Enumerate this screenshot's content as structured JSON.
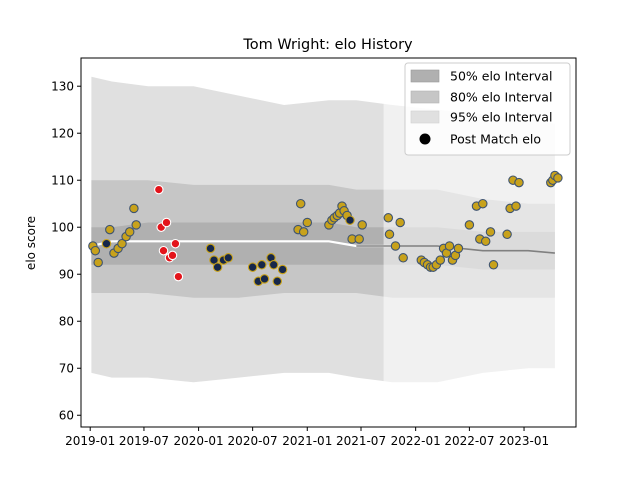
{
  "chart_data": {
    "type": "scatter",
    "title": "Tom Wright: elo History",
    "xlabel": "",
    "ylabel": "elo score",
    "x_axis_type": "date",
    "xlim": [
      "2018-12-01",
      "2023-06-25"
    ],
    "ylim": [
      57.5,
      136
    ],
    "x_ticks": [
      "2019-01",
      "2019-07",
      "2020-01",
      "2020-07",
      "2021-01",
      "2021-07",
      "2022-01",
      "2022-07",
      "2023-01"
    ],
    "y_ticks": [
      60,
      70,
      80,
      90,
      100,
      110,
      120,
      130
    ],
    "grid": false,
    "legend_position": "top-right",
    "legend": [
      {
        "label": "50% elo Interval",
        "swatch": "#b0b0b0"
      },
      {
        "label": "80% elo Interval",
        "swatch": "#c6c6c6"
      },
      {
        "label": "95% elo Interval",
        "swatch": "#e0e0e0"
      },
      {
        "label": "Post Match elo",
        "swatch": "marker"
      }
    ],
    "colors": {
      "band_95": "#e0e0e0",
      "band_80": "#c6c6c6",
      "band_50": "#b0b0b0",
      "mean_line": "#ffffff",
      "mean_line_later": "#808080",
      "marker_red": "#e3141b",
      "marker_gold": "#c8a21b",
      "marker_navy": "#16274a",
      "marker_edge_light": "#ffffff",
      "marker_edge_dark": "#3f5470"
    },
    "bands": [
      {
        "date": "2019-01-05",
        "lo95": 69,
        "lo80": 86,
        "lo50": 92,
        "mean": 96,
        "hi50": 100,
        "hi80": 110,
        "hi95": 132
      },
      {
        "date": "2019-03-15",
        "lo95": 68,
        "lo80": 86,
        "lo50": 92,
        "mean": 97,
        "hi50": 100,
        "hi80": 110,
        "hi95": 131
      },
      {
        "date": "2019-07-15",
        "lo95": 68,
        "lo80": 86,
        "lo50": 92,
        "mean": 97,
        "hi50": 101,
        "hi80": 110,
        "hi95": 130
      },
      {
        "date": "2019-12-15",
        "lo95": 67,
        "lo80": 85,
        "lo50": 92,
        "mean": 97,
        "hi50": 101,
        "hi80": 109,
        "hi95": 130
      },
      {
        "date": "2020-05-15",
        "lo95": 68,
        "lo80": 85,
        "lo50": 92,
        "mean": 97,
        "hi50": 101,
        "hi80": 109,
        "hi95": 128
      },
      {
        "date": "2020-10-15",
        "lo95": 69,
        "lo80": 86,
        "lo50": 92,
        "mean": 97,
        "hi50": 101,
        "hi80": 109,
        "hi95": 126
      },
      {
        "date": "2021-03-15",
        "lo95": 69,
        "lo80": 86,
        "lo50": 92,
        "mean": 97,
        "hi50": 101,
        "hi80": 109,
        "hi95": 127
      },
      {
        "date": "2021-06-15",
        "lo95": 68,
        "lo80": 86,
        "lo50": 92,
        "mean": 96,
        "hi50": 100,
        "hi80": 108,
        "hi95": 127
      },
      {
        "date": "2021-10-15",
        "lo95": 67,
        "lo80": 85,
        "lo50": 92,
        "mean": 96,
        "hi50": 100,
        "hi80": 108,
        "hi95": 126
      },
      {
        "date": "2022-03-15",
        "lo95": 67,
        "lo80": 85,
        "lo50": 92,
        "mean": 96,
        "hi50": 100,
        "hi80": 108,
        "hi95": 125
      },
      {
        "date": "2022-08-15",
        "lo95": 69,
        "lo80": 85,
        "lo50": 91,
        "mean": 95,
        "hi50": 99,
        "hi80": 106,
        "hi95": 124
      },
      {
        "date": "2023-01-15",
        "lo95": 70,
        "lo80": 85,
        "lo50": 91,
        "mean": 95,
        "hi50": 99,
        "hi80": 105,
        "hi95": 123
      },
      {
        "date": "2023-04-15",
        "lo95": 70,
        "lo80": 85,
        "lo50": 91,
        "mean": 94.5,
        "hi50": 99,
        "hi80": 105,
        "hi95": 122
      }
    ],
    "mean_line_split_date": "2021-09-15",
    "shaded_region_end_date": "2021-09-15",
    "points": [
      {
        "date": "2019-01-10",
        "y": 96,
        "c": "gold"
      },
      {
        "date": "2019-01-18",
        "y": 95,
        "c": "gold"
      },
      {
        "date": "2019-01-28",
        "y": 92.5,
        "c": "gold"
      },
      {
        "date": "2019-03-08",
        "y": 99.5,
        "c": "gold"
      },
      {
        "date": "2019-03-22",
        "y": 94.5,
        "c": "gold"
      },
      {
        "date": "2019-04-05",
        "y": 95.5,
        "c": "gold"
      },
      {
        "date": "2019-04-18",
        "y": 96.5,
        "c": "gold"
      },
      {
        "date": "2019-05-02",
        "y": 98,
        "c": "gold"
      },
      {
        "date": "2019-05-14",
        "y": 99,
        "c": "gold"
      },
      {
        "date": "2019-05-28",
        "y": 104,
        "c": "gold"
      },
      {
        "date": "2019-06-05",
        "y": 100.5,
        "c": "gold"
      },
      {
        "date": "2019-02-25",
        "y": 96.5,
        "c": "navy"
      },
      {
        "date": "2019-08-20",
        "y": 108,
        "c": "red"
      },
      {
        "date": "2019-08-28",
        "y": 100,
        "c": "red"
      },
      {
        "date": "2019-09-05",
        "y": 95,
        "c": "red"
      },
      {
        "date": "2019-09-15",
        "y": 101,
        "c": "red"
      },
      {
        "date": "2019-09-25",
        "y": 93.5,
        "c": "red"
      },
      {
        "date": "2019-10-05",
        "y": 94,
        "c": "red"
      },
      {
        "date": "2019-10-15",
        "y": 96.5,
        "c": "red"
      },
      {
        "date": "2019-10-25",
        "y": 89.5,
        "c": "red"
      },
      {
        "date": "2020-02-10",
        "y": 95.5,
        "c": "navy"
      },
      {
        "date": "2020-02-22",
        "y": 93,
        "c": "navy"
      },
      {
        "date": "2020-03-05",
        "y": 91.5,
        "c": "navy"
      },
      {
        "date": "2020-03-25",
        "y": 93,
        "c": "navy"
      },
      {
        "date": "2020-04-10",
        "y": 93.5,
        "c": "navy"
      },
      {
        "date": "2020-07-01",
        "y": 91.5,
        "c": "navy"
      },
      {
        "date": "2020-07-20",
        "y": 88.5,
        "c": "navy"
      },
      {
        "date": "2020-08-01",
        "y": 92,
        "c": "navy"
      },
      {
        "date": "2020-08-10",
        "y": 89,
        "c": "navy"
      },
      {
        "date": "2020-09-01",
        "y": 93.5,
        "c": "navy"
      },
      {
        "date": "2020-09-10",
        "y": 92,
        "c": "navy"
      },
      {
        "date": "2020-09-22",
        "y": 88.5,
        "c": "navy"
      },
      {
        "date": "2020-10-10",
        "y": 91,
        "c": "navy"
      },
      {
        "date": "2020-12-01",
        "y": 99.5,
        "c": "gold"
      },
      {
        "date": "2020-12-10",
        "y": 105,
        "c": "gold"
      },
      {
        "date": "2020-12-20",
        "y": 99,
        "c": "gold"
      },
      {
        "date": "2021-01-01",
        "y": 101,
        "c": "gold"
      },
      {
        "date": "2021-03-15",
        "y": 100.5,
        "c": "gold"
      },
      {
        "date": "2021-03-25",
        "y": 101.5,
        "c": "gold"
      },
      {
        "date": "2021-04-02",
        "y": 102,
        "c": "gold"
      },
      {
        "date": "2021-04-12",
        "y": 102.5,
        "c": "gold"
      },
      {
        "date": "2021-04-20",
        "y": 103,
        "c": "gold"
      },
      {
        "date": "2021-04-28",
        "y": 104.5,
        "c": "gold"
      },
      {
        "date": "2021-05-05",
        "y": 103.5,
        "c": "gold"
      },
      {
        "date": "2021-05-15",
        "y": 102.5,
        "c": "gold"
      },
      {
        "date": "2021-05-25",
        "y": 101.5,
        "c": "navy"
      },
      {
        "date": "2021-06-01",
        "y": 97.5,
        "c": "gold"
      },
      {
        "date": "2021-06-25",
        "y": 97.5,
        "c": "gold"
      },
      {
        "date": "2021-07-05",
        "y": 100.5,
        "c": "gold"
      },
      {
        "date": "2021-10-01",
        "y": 102,
        "c": "gold"
      },
      {
        "date": "2021-10-05",
        "y": 98.5,
        "c": "gold"
      },
      {
        "date": "2021-10-25",
        "y": 96,
        "c": "gold"
      },
      {
        "date": "2021-11-10",
        "y": 101,
        "c": "gold"
      },
      {
        "date": "2021-11-20",
        "y": 93.5,
        "c": "gold"
      },
      {
        "date": "2022-01-20",
        "y": 93,
        "c": "gold"
      },
      {
        "date": "2022-01-30",
        "y": 92.5,
        "c": "gold"
      },
      {
        "date": "2022-02-10",
        "y": 92,
        "c": "gold"
      },
      {
        "date": "2022-02-20",
        "y": 91.5,
        "c": "gold"
      },
      {
        "date": "2022-03-01",
        "y": 91.5,
        "c": "gold"
      },
      {
        "date": "2022-03-12",
        "y": 92,
        "c": "gold"
      },
      {
        "date": "2022-03-25",
        "y": 93,
        "c": "gold"
      },
      {
        "date": "2022-04-05",
        "y": 95.5,
        "c": "gold"
      },
      {
        "date": "2022-04-15",
        "y": 94.5,
        "c": "gold"
      },
      {
        "date": "2022-04-25",
        "y": 96,
        "c": "gold"
      },
      {
        "date": "2022-05-05",
        "y": 93,
        "c": "gold"
      },
      {
        "date": "2022-05-15",
        "y": 94,
        "c": "gold"
      },
      {
        "date": "2022-05-25",
        "y": 95.5,
        "c": "gold"
      },
      {
        "date": "2022-07-01",
        "y": 100.5,
        "c": "gold"
      },
      {
        "date": "2022-07-25",
        "y": 104.5,
        "c": "gold"
      },
      {
        "date": "2022-08-05",
        "y": 97.5,
        "c": "gold"
      },
      {
        "date": "2022-08-15",
        "y": 105,
        "c": "gold"
      },
      {
        "date": "2022-08-25",
        "y": 97,
        "c": "gold"
      },
      {
        "date": "2022-09-10",
        "y": 99,
        "c": "gold"
      },
      {
        "date": "2022-09-20",
        "y": 92,
        "c": "gold"
      },
      {
        "date": "2022-11-05",
        "y": 98.5,
        "c": "gold"
      },
      {
        "date": "2022-11-15",
        "y": 104,
        "c": "gold"
      },
      {
        "date": "2022-11-25",
        "y": 110,
        "c": "gold"
      },
      {
        "date": "2022-12-05",
        "y": 104.5,
        "c": "gold"
      },
      {
        "date": "2022-12-15",
        "y": 109.5,
        "c": "gold"
      },
      {
        "date": "2023-04-01",
        "y": 109.5,
        "c": "gold"
      },
      {
        "date": "2023-04-08",
        "y": 110,
        "c": "gold"
      },
      {
        "date": "2023-04-15",
        "y": 111,
        "c": "gold"
      },
      {
        "date": "2023-04-25",
        "y": 110.5,
        "c": "gold"
      }
    ]
  }
}
